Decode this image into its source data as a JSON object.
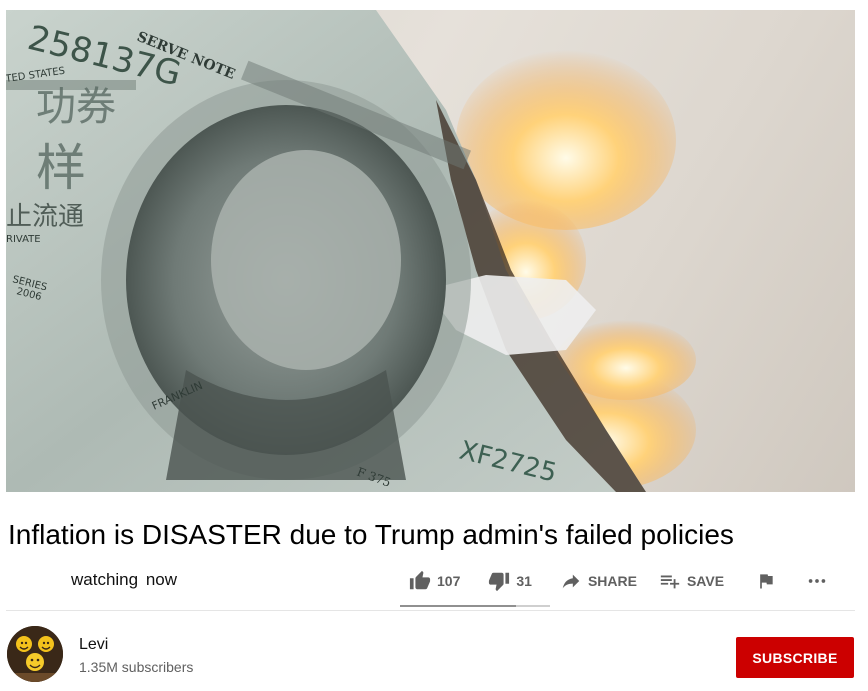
{
  "video": {
    "title": "Inflation is DISASTER due to Trump admin's failed policies",
    "watching": "watching  now",
    "bill_text": {
      "serial_top": "258137G",
      "serial_bottom": "XF2725",
      "notes": "SERVE NOTE",
      "states": "TED STATES",
      "series": "SERIES",
      "series_year": "2006",
      "private": "RIVATE",
      "franklin": "FRANKLIN",
      "plate": "F 375",
      "stamp_1": "功券",
      "stamp_2": "样",
      "stamp_3": "止流通"
    }
  },
  "actions": {
    "like_count": "107",
    "dislike_count": "31",
    "share_label": "SHARE",
    "save_label": "SAVE",
    "like_ratio": 0.775
  },
  "channel": {
    "name": "Levi",
    "subscribers": "1.35M subscribers",
    "subscribe_label": "SUBSCRIBE"
  },
  "icons": {
    "like": "thumbs-up-icon",
    "dislike": "thumbs-down-icon",
    "share": "share-arrow-icon",
    "save": "playlist-add-icon",
    "report": "flag-icon",
    "more": "more-horizontal-icon"
  },
  "colors": {
    "subscribe": "#cc0000",
    "icon_gray": "#606060"
  }
}
